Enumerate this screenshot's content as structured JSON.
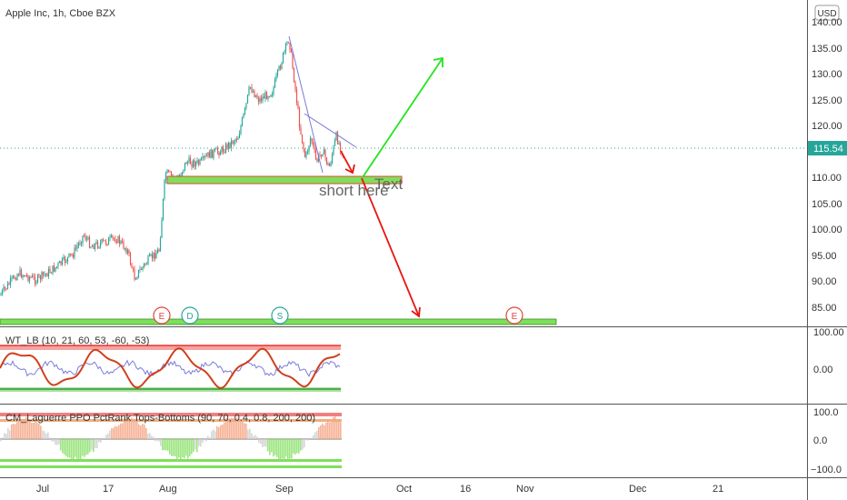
{
  "header": {
    "symbol_title": "Apple Inc, 1h, Cboe BZX",
    "currency_button": "USD"
  },
  "price_axis": {
    "ticks": [
      "140.00",
      "135.00",
      "130.00",
      "125.00",
      "120.00",
      "110.00",
      "105.00",
      "100.00",
      "95.00",
      "90.00",
      "85.00"
    ],
    "last_price": "115.54"
  },
  "time_axis": {
    "labels": [
      "Jul",
      "17",
      "Aug",
      "Sep",
      "Oct",
      "16",
      "Nov",
      "Dec",
      "21"
    ]
  },
  "annotations": {
    "short_text": "short here",
    "text_label": "Text"
  },
  "event_markers": [
    "E",
    "D",
    "S",
    "E"
  ],
  "indicator1": {
    "title": "WT_LB (10, 21, 60, 53, -60, -53)",
    "ticks": [
      "100.00",
      "0.00"
    ]
  },
  "indicator2": {
    "title": "CM_Laguerre PPO PctRank Tops-Bottoms (90, 70, 0.4, 0.8, 200, 200)",
    "ticks": [
      "100.0",
      "0.0",
      "−100.0"
    ]
  },
  "colors": {
    "up": "#26a69a",
    "down": "#ef5350",
    "green_zone": "#7ee05a",
    "red_arrow": "#e8160f",
    "green_arrow": "#22e51b",
    "last_price_bg": "#26a69a",
    "trendline": "#7a7ad6"
  }
}
